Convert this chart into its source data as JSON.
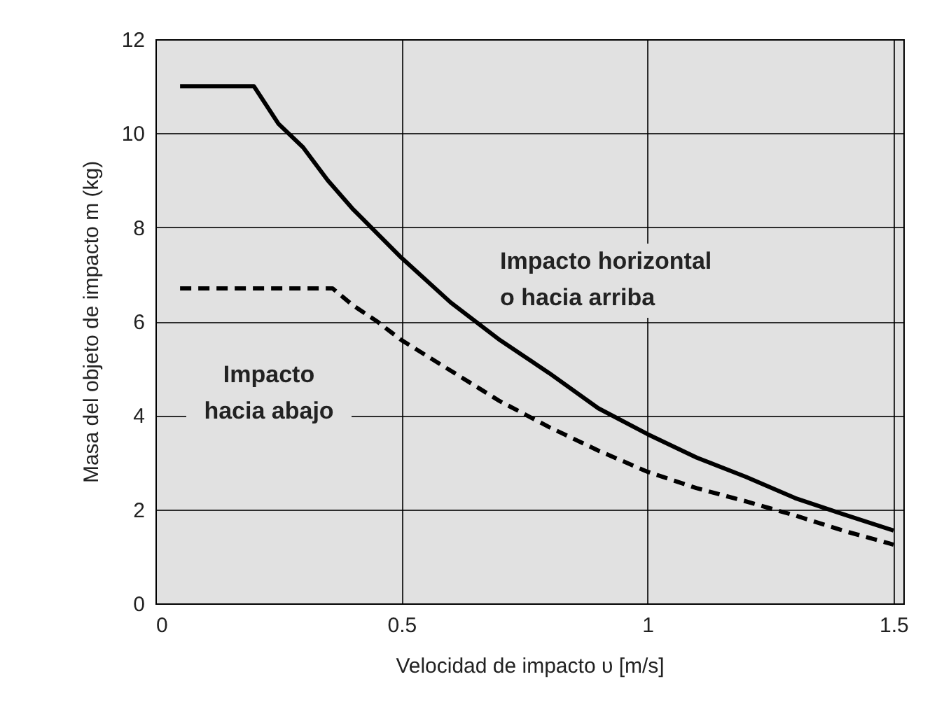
{
  "chart_data": {
    "type": "line",
    "xlabel": "Velocidad de impacto υ [m/s]",
    "ylabel": "Masa del objeto de impacto m (kg)",
    "xlim": [
      0,
      1.52
    ],
    "xticks": [
      0,
      0.5,
      1,
      1.5
    ],
    "ylim": [
      0,
      12
    ],
    "yticks": [
      0,
      2,
      4,
      6,
      8,
      10,
      12
    ],
    "grid": true,
    "series": [
      {
        "color": "#000000",
        "line_style": "solid",
        "x": [
          0.05,
          0.2,
          0.25,
          0.3,
          0.35,
          0.4,
          0.5,
          0.6,
          0.7,
          0.8,
          0.9,
          1.0,
          1.1,
          1.2,
          1.3,
          1.4,
          1.5
        ],
        "values": [
          11,
          11,
          10.2,
          9.7,
          9.0,
          8.4,
          7.35,
          6.4,
          5.6,
          4.9,
          4.15,
          3.6,
          3.1,
          2.69,
          2.24,
          1.89,
          1.55
        ]
      },
      {
        "color": "#000000",
        "line_style": "dashed",
        "x": [
          0.05,
          0.36,
          0.4,
          0.45,
          0.5,
          0.6,
          0.7,
          0.8,
          0.9,
          1.0,
          1.1,
          1.2,
          1.3,
          1.4,
          1.5
        ],
        "values": [
          6.7,
          6.7,
          6.35,
          6.0,
          5.6,
          4.95,
          4.3,
          3.75,
          3.25,
          2.8,
          2.45,
          2.17,
          1.87,
          1.54,
          1.25
        ]
      }
    ],
    "annotations": [
      "Impacto horizontal\no hacia arriba",
      "Impacto\nhacia abajo"
    ]
  }
}
